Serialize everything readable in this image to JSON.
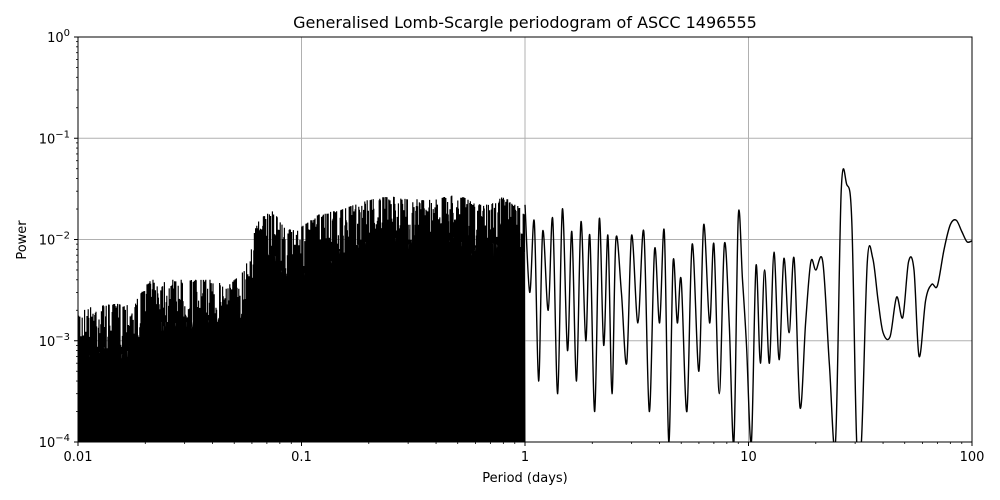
{
  "chart_data": {
    "type": "line",
    "title": "Generalised Lomb-Scargle periodogram of ASCC 1496555",
    "xlabel": "Period (days)",
    "ylabel": "Power",
    "xscale": "log",
    "yscale": "log",
    "xlim": [
      0.01,
      100
    ],
    "ylim": [
      0.0001,
      1
    ],
    "grid": true,
    "x_ticks": [
      {
        "value": 0.01,
        "label": "0.01"
      },
      {
        "value": 0.1,
        "label": "0.1"
      },
      {
        "value": 1,
        "label": "1"
      },
      {
        "value": 10,
        "label": "10"
      },
      {
        "value": 100,
        "label": "100"
      }
    ],
    "y_ticks": [
      {
        "value": 1,
        "base": "10",
        "exp": "0"
      },
      {
        "value": 0.1,
        "base": "10",
        "exp": "−1"
      },
      {
        "value": 0.01,
        "base": "10",
        "exp": "−2"
      },
      {
        "value": 0.001,
        "base": "10",
        "exp": "−3"
      },
      {
        "value": 0.0001,
        "base": "10",
        "exp": "−4"
      }
    ],
    "line_color": "#000000",
    "grid_color": "#b0b0b0",
    "noise_envelope": {
      "description": "Dense, unresolved peak forest; upper envelope of peaks (period days, power)",
      "points": [
        [
          0.01,
          0.0022
        ],
        [
          0.012,
          0.0025
        ],
        [
          0.015,
          0.0026
        ],
        [
          0.018,
          0.0027
        ],
        [
          0.021,
          0.0045
        ],
        [
          0.025,
          0.0045
        ],
        [
          0.03,
          0.0045
        ],
        [
          0.035,
          0.0045
        ],
        [
          0.04,
          0.0045
        ],
        [
          0.045,
          0.004
        ],
        [
          0.05,
          0.0045
        ],
        [
          0.055,
          0.0055
        ],
        [
          0.06,
          0.012
        ],
        [
          0.065,
          0.018
        ],
        [
          0.075,
          0.022
        ],
        [
          0.085,
          0.014
        ],
        [
          0.1,
          0.015
        ],
        [
          0.12,
          0.02
        ],
        [
          0.15,
          0.022
        ],
        [
          0.2,
          0.028
        ],
        [
          0.25,
          0.03
        ],
        [
          0.3,
          0.028
        ],
        [
          0.4,
          0.028
        ],
        [
          0.5,
          0.032
        ],
        [
          0.6,
          0.025
        ],
        [
          0.7,
          0.025
        ],
        [
          0.8,
          0.03
        ],
        [
          0.9,
          0.025
        ],
        [
          1.0,
          0.022
        ]
      ],
      "floor_envelope": [
        [
          0.01,
          0.0001
        ],
        [
          0.2,
          0.0001
        ],
        [
          0.3,
          0.00012
        ],
        [
          0.5,
          0.00015
        ],
        [
          1.0,
          0.0002
        ]
      ]
    },
    "tail_series": {
      "description": "Resolved periodogram curve at long periods (period days, power)",
      "x": [
        1.0,
        1.05,
        1.1,
        1.15,
        1.2,
        1.27,
        1.33,
        1.4,
        1.47,
        1.55,
        1.62,
        1.7,
        1.78,
        1.87,
        1.95,
        2.05,
        2.15,
        2.25,
        2.35,
        2.45,
        2.55,
        2.7,
        2.85,
        3.0,
        3.2,
        3.4,
        3.6,
        3.8,
        4.0,
        4.2,
        4.4,
        4.6,
        4.8,
        5.0,
        5.3,
        5.6,
        6.0,
        6.3,
        6.7,
        7.0,
        7.4,
        7.8,
        8.2,
        8.6,
        9.0,
        9.4,
        9.8,
        10.3,
        10.8,
        11.3,
        11.8,
        12.4,
        13.0,
        13.7,
        14.4,
        15.2,
        16.0,
        17.0,
        18.0,
        19.0,
        20.0,
        21.5,
        23.0,
        24.5,
        26.0,
        27.5,
        29.0,
        30.5,
        32.0,
        34.0,
        36.0,
        38.0,
        40.0,
        43.0,
        46.0,
        49.0,
        52.0,
        55.0,
        58.0,
        62.0,
        66.0,
        70.0,
        75.0,
        80.0,
        85.0,
        90.0,
        95.0,
        100.0
      ],
      "y": [
        0.022,
        0.003,
        0.015,
        0.0004,
        0.012,
        0.002,
        0.016,
        0.0003,
        0.02,
        0.0008,
        0.012,
        0.0004,
        0.015,
        0.001,
        0.011,
        0.0002,
        0.016,
        0.0009,
        0.011,
        0.0003,
        0.01,
        0.003,
        0.0006,
        0.011,
        0.0015,
        0.012,
        0.0002,
        0.008,
        0.0015,
        0.012,
        0.0001,
        0.006,
        0.0015,
        0.004,
        0.0002,
        0.009,
        0.0005,
        0.014,
        0.0015,
        0.009,
        0.0003,
        0.009,
        0.0015,
        0.0001,
        0.017,
        0.004,
        0.0009,
        0.0001,
        0.0055,
        0.0006,
        0.005,
        0.0006,
        0.0075,
        0.00065,
        0.0065,
        0.0012,
        0.0065,
        0.00022,
        0.0015,
        0.006,
        0.005,
        0.006,
        0.0006,
        0.0001,
        0.03,
        0.035,
        0.015,
        0.0001,
        0.0001,
        0.006,
        0.0065,
        0.0025,
        0.0012,
        0.0011,
        0.0027,
        0.0017,
        0.006,
        0.005,
        0.0007,
        0.0025,
        0.0036,
        0.0035,
        0.008,
        0.014,
        0.0155,
        0.012,
        0.0095,
        0.0097
      ]
    }
  }
}
